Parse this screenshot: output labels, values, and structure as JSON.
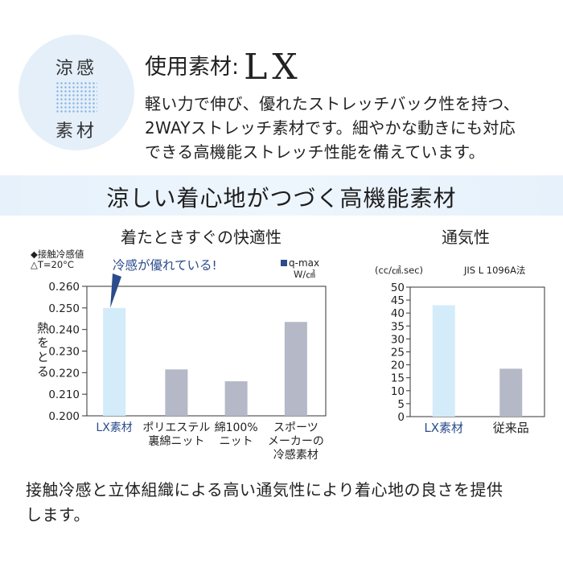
{
  "badge": {
    "line1": "涼感",
    "line2": "素材"
  },
  "header": {
    "label": "使用素材:",
    "material": "LX",
    "description": [
      "軽い力で伸び、優れたストレッチバック性を持つ、",
      "2WAYストレッチ素材です。細やかな動きにも対応",
      "できる高機能ストレッチ性能を備えています。"
    ]
  },
  "banner": {
    "text": "涼しい着心地がつづく高機能素材"
  },
  "footer": {
    "lines": [
      "接触冷感と立体組織による高い通気性により着心地の良さを提供",
      "します。"
    ]
  },
  "chart_data": [
    {
      "type": "bar",
      "title": "着たときすぐの快適性",
      "metric_lines": [
        "◆接触冷感値",
        "△T=20°C"
      ],
      "legend": {
        "label": "q-max",
        "unit": "W/㎠",
        "color": "#2b4c8c"
      },
      "ylabel": "熱をとる",
      "ylim": [
        0.2,
        0.26
      ],
      "yticks": [
        "0.200",
        "0.210",
        "0.220",
        "0.230",
        "0.240",
        "0.250",
        "0.260"
      ],
      "categories": [
        [
          "LX素材"
        ],
        [
          "ポリエステル",
          "裏綿ニット"
        ],
        [
          "綿100%",
          "ニット"
        ],
        [
          "スポーツ",
          "メーカーの",
          "冷感素材"
        ]
      ],
      "values": [
        0.25,
        0.2215,
        0.216,
        0.2435
      ],
      "colors": [
        "#d4ecfa",
        "#b5b8c6",
        "#b5b8c6",
        "#b5b8c6"
      ],
      "label_colors": [
        "#2b4c8c",
        "#222222",
        "#222222",
        "#222222"
      ],
      "annotation": "冷感が優れている!"
    },
    {
      "type": "bar",
      "title": "通気性",
      "unit": "(cc/㎠.sec)",
      "standard": "JIS L 1096A法",
      "ylim": [
        0,
        50
      ],
      "yticks": [
        "0",
        "5",
        "10",
        "15",
        "20",
        "25",
        "30",
        "35",
        "40",
        "45",
        "50"
      ],
      "categories": [
        "LX素材",
        "従来品"
      ],
      "values": [
        43,
        18.5
      ],
      "colors": [
        "#d4ecfa",
        "#b5b8c6"
      ],
      "label_colors": [
        "#2b4c8c",
        "#222222"
      ]
    }
  ]
}
